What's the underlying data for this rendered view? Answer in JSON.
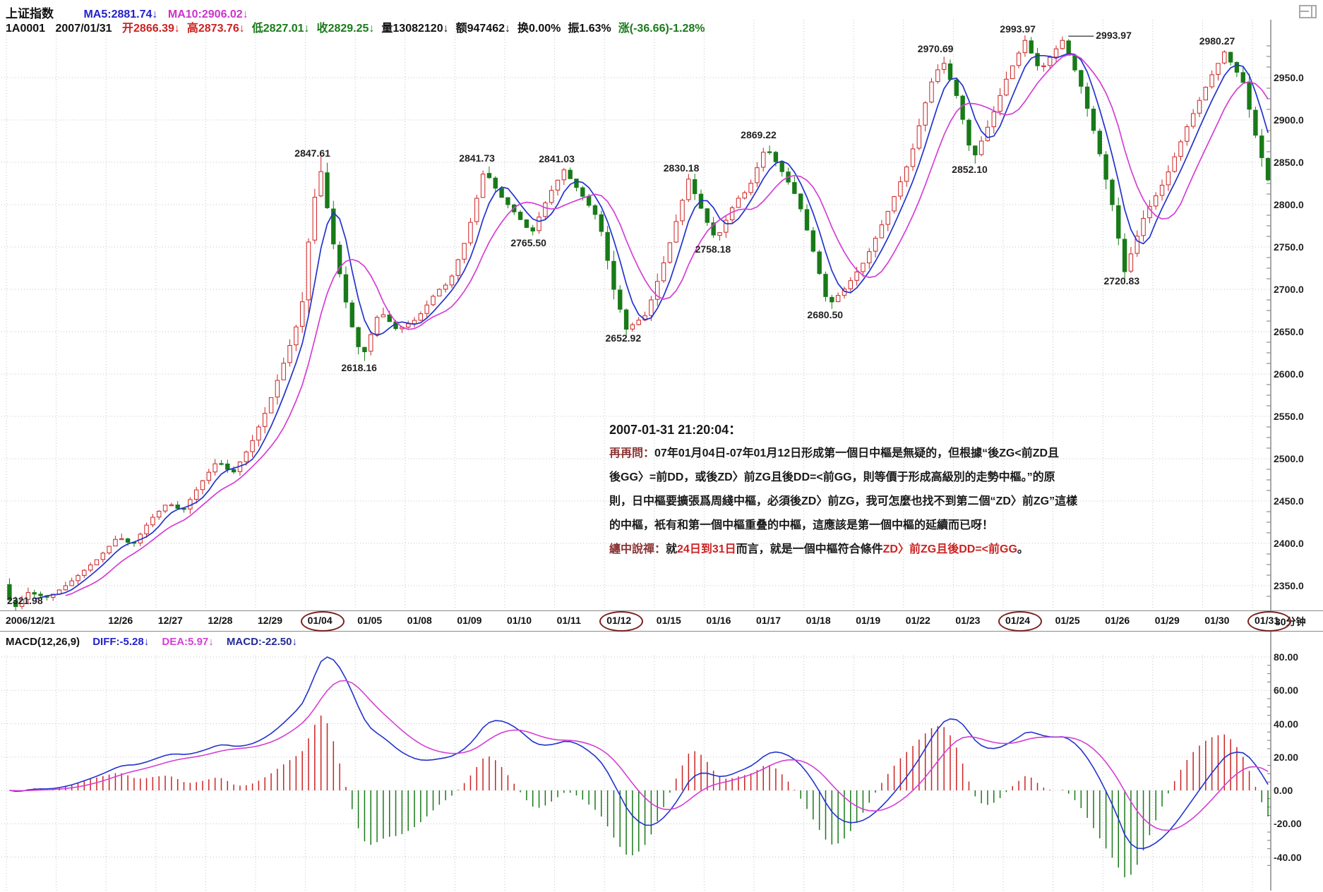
{
  "window": {
    "icon": "window-layout-icon"
  },
  "header": {
    "title": "上证指数",
    "ma5": {
      "text": "MA5:2881.74↓",
      "color": "#2222cc"
    },
    "ma10": {
      "text": "MA10:2906.02↓",
      "color": "#cc33cc"
    },
    "code": "1A0001",
    "date": "2007/01/31",
    "fields": [
      {
        "text": "开2866.39↓",
        "color": "#cc2222"
      },
      {
        "text": "高2873.76↓",
        "color": "#cc2222"
      },
      {
        "text": "低2827.01↓",
        "color": "#1b7a1b"
      },
      {
        "text": "收2829.25↓",
        "color": "#1b7a1b"
      },
      {
        "text": "量13082120↓",
        "color": "#111111"
      },
      {
        "text": "额947462↓",
        "color": "#111111"
      },
      {
        "text": "换0.00%",
        "color": "#111111"
      },
      {
        "text": "振1.63%",
        "color": "#111111"
      },
      {
        "text": "涨(-36.66)-1.28%",
        "color": "#1b7a1b"
      }
    ]
  },
  "macd_header": {
    "name": "MACD(12,26,9)",
    "diff": {
      "text": "DIFF:-5.28↓",
      "color": "#2222cc"
    },
    "dea": {
      "text": "DEA:5.97↓",
      "color": "#d43fd4"
    },
    "macd": {
      "text": "MACD:-22.50↓",
      "color": "#222a99"
    }
  },
  "timeframe": "30分钟",
  "annotation": {
    "timestamp": "2007-01-31 21:20:04：",
    "lines": [
      [
        {
          "t": "再再問：",
          "c": "#8b3333"
        },
        {
          "t": "07年01月04日-07年01月12日形成第一個日中樞是無疑的，但根據“後ZG<前ZD且",
          "c": "#1a1a1a"
        }
      ],
      [
        {
          "t": "後GG〉=前DD，或後ZD〉前ZG且後DD=<前GG，則等價于形成高級別的走勢中樞。”的原",
          "c": "#1a1a1a"
        }
      ],
      [
        {
          "t": "則，日中樞要擴張爲周綫中樞，必須後ZD〉前ZG，我可怎麼也找不到第二個“ZD〉前ZG”這樣",
          "c": "#1a1a1a"
        }
      ],
      [
        {
          "t": "的中樞，衹有和第一個中樞重叠的中樞，這應該是第一個中樞的延續而已呀！",
          "c": "#1a1a1a"
        }
      ],
      [
        {
          "t": "纏中說禪：",
          "c": "#8b3333"
        },
        {
          "t": "就",
          "c": "#1a1a1a"
        },
        {
          "t": "24日到31日",
          "c": "#cc2222"
        },
        {
          "t": "而言，就是一個中樞符合條件",
          "c": "#1a1a1a"
        },
        {
          "t": "ZD〉前ZG且後DD=<前GG",
          "c": "#cc2222"
        },
        {
          "t": "。",
          "c": "#1a1a1a"
        }
      ]
    ]
  },
  "chart_data": {
    "type": "candlestick",
    "instrument": "上证指数 1A0001",
    "period": "30分钟",
    "panels": [
      "price-with-ma5-ma10",
      "macd-12-26-9"
    ],
    "price_axis": {
      "ticks": [
        2950.0,
        2900.0,
        2850.0,
        2800.0,
        2750.0,
        2700.0,
        2650.0,
        2600.0,
        2550.0,
        2500.0,
        2450.0,
        2400.0,
        2350.0
      ],
      "grid": "dotted"
    },
    "macd_axis": {
      "ticks": [
        80.0,
        60.0,
        40.0,
        20.0,
        0.0,
        -20.0,
        -40.0
      ],
      "grid": "dotted"
    },
    "days": [
      {
        "label": "2006/12/21",
        "circled": false
      },
      {
        "label": "",
        "circled": false
      },
      {
        "label": "12/26",
        "circled": false
      },
      {
        "label": "12/27",
        "circled": false
      },
      {
        "label": "12/28",
        "circled": false
      },
      {
        "label": "12/29",
        "circled": false
      },
      {
        "label": "01/04",
        "circled": true
      },
      {
        "label": "01/05",
        "circled": false
      },
      {
        "label": "01/08",
        "circled": false
      },
      {
        "label": "01/09",
        "circled": false
      },
      {
        "label": "01/10",
        "circled": false
      },
      {
        "label": "01/11",
        "circled": false
      },
      {
        "label": "01/12",
        "circled": true
      },
      {
        "label": "01/15",
        "circled": false
      },
      {
        "label": "01/16",
        "circled": false
      },
      {
        "label": "01/17",
        "circled": false
      },
      {
        "label": "01/18",
        "circled": false
      },
      {
        "label": "01/19",
        "circled": false
      },
      {
        "label": "01/22",
        "circled": false
      },
      {
        "label": "01/23",
        "circled": false
      },
      {
        "label": "01/24",
        "circled": true
      },
      {
        "label": "01/25",
        "circled": false
      },
      {
        "label": "01/26",
        "circled": false
      },
      {
        "label": "01/29",
        "circled": false
      },
      {
        "label": "01/30",
        "circled": false
      },
      {
        "label": "01/31",
        "circled": true
      }
    ],
    "bars_per_day": 8,
    "last_day_bars": 3,
    "pivots": [
      {
        "t": 0.2,
        "price": 2321.98,
        "label": "2321.98",
        "side": "below"
      },
      {
        "t": 6.35,
        "price": 2847.61,
        "label": "2847.61",
        "side": "above"
      },
      {
        "t": 7.2,
        "price": 2618.16,
        "label": "2618.16",
        "side": "below"
      },
      {
        "t": 9.65,
        "price": 2841.73,
        "label": "2841.73",
        "side": "above"
      },
      {
        "t": 10.6,
        "price": 2765.5,
        "label": "2765.50",
        "side": "below"
      },
      {
        "t": 11.25,
        "price": 2841.03,
        "label": "2841.03",
        "side": "above"
      },
      {
        "t": 12.5,
        "price": 2652.92,
        "label": "2652.92",
        "side": "below"
      },
      {
        "t": 13.75,
        "price": 2830.18,
        "label": "2830.18",
        "side": "above"
      },
      {
        "t": 14.3,
        "price": 2758.18,
        "label": "2758.18",
        "side": "below"
      },
      {
        "t": 15.3,
        "price": 2869.22,
        "label": "2869.22",
        "side": "above"
      },
      {
        "t": 16.55,
        "price": 2680.5,
        "label": "2680.50",
        "side": "below"
      },
      {
        "t": 18.85,
        "price": 2970.69,
        "label": "2970.69",
        "side": "above"
      },
      {
        "t": 19.45,
        "price": 2852.1,
        "label": "2852.10",
        "side": "below"
      },
      {
        "t": 20.5,
        "price": 2993.97,
        "label": "2993.97",
        "side": "above"
      },
      {
        "t": 21.25,
        "price": 2993.97,
        "label": "2993.97",
        "side": "above",
        "leader": true
      },
      {
        "t": 22.5,
        "price": 2720.83,
        "label": "2720.83",
        "side": "below"
      },
      {
        "t": 24.5,
        "price": 2980.27,
        "label": "2980.27",
        "side": "above"
      }
    ],
    "price_path_anchors": [
      [
        0.0,
        2352
      ],
      [
        0.2,
        2321.98
      ],
      [
        0.5,
        2342
      ],
      [
        0.9,
        2336
      ],
      [
        1.3,
        2352
      ],
      [
        1.9,
        2382
      ],
      [
        2.3,
        2408
      ],
      [
        2.6,
        2398
      ],
      [
        2.95,
        2428
      ],
      [
        3.3,
        2448
      ],
      [
        3.6,
        2438
      ],
      [
        3.95,
        2470
      ],
      [
        4.3,
        2498
      ],
      [
        4.6,
        2482
      ],
      [
        4.95,
        2515
      ],
      [
        5.3,
        2560
      ],
      [
        5.7,
        2625
      ],
      [
        5.98,
        2674
      ],
      [
        6.15,
        2770
      ],
      [
        6.35,
        2847.61
      ],
      [
        6.65,
        2745
      ],
      [
        6.95,
        2665
      ],
      [
        7.2,
        2618.16
      ],
      [
        7.55,
        2675
      ],
      [
        7.9,
        2652
      ],
      [
        8.3,
        2665
      ],
      [
        8.7,
        2698
      ],
      [
        8.95,
        2708
      ],
      [
        9.3,
        2762
      ],
      [
        9.65,
        2841.73
      ],
      [
        9.95,
        2812
      ],
      [
        10.3,
        2788
      ],
      [
        10.6,
        2765.5
      ],
      [
        10.95,
        2812
      ],
      [
        11.25,
        2841.03
      ],
      [
        11.6,
        2812
      ],
      [
        11.95,
        2782
      ],
      [
        12.25,
        2700
      ],
      [
        12.5,
        2652.92
      ],
      [
        12.9,
        2670
      ],
      [
        13.3,
        2740
      ],
      [
        13.75,
        2830.18
      ],
      [
        14.1,
        2782
      ],
      [
        14.3,
        2758.18
      ],
      [
        14.7,
        2805
      ],
      [
        14.95,
        2818
      ],
      [
        15.3,
        2869.22
      ],
      [
        15.7,
        2832
      ],
      [
        15.95,
        2805
      ],
      [
        16.3,
        2735
      ],
      [
        16.55,
        2680.5
      ],
      [
        16.9,
        2702
      ],
      [
        17.3,
        2735
      ],
      [
        17.75,
        2792
      ],
      [
        18.2,
        2855
      ],
      [
        18.6,
        2942
      ],
      [
        18.85,
        2970.69
      ],
      [
        19.15,
        2925
      ],
      [
        19.45,
        2852.1
      ],
      [
        19.8,
        2898
      ],
      [
        20.15,
        2952
      ],
      [
        20.5,
        2993.97
      ],
      [
        20.8,
        2958
      ],
      [
        21.1,
        2982
      ],
      [
        21.25,
        2993.97
      ],
      [
        21.6,
        2945
      ],
      [
        21.95,
        2872
      ],
      [
        22.25,
        2800
      ],
      [
        22.5,
        2720.83
      ],
      [
        22.9,
        2788
      ],
      [
        23.3,
        2828
      ],
      [
        23.75,
        2892
      ],
      [
        24.2,
        2948
      ],
      [
        24.5,
        2980.27
      ],
      [
        24.9,
        2942
      ],
      [
        25.05,
        2898
      ],
      [
        25.2,
        2866
      ],
      [
        25.375,
        2829.25
      ]
    ],
    "macd_params": [
      12,
      26,
      9
    ],
    "macd_peak_scale": 80,
    "series_colors": {
      "up": "#cc2222",
      "down": "#187a18",
      "ma5": "#2233cc",
      "ma10": "#d43fd4",
      "diff": "#2233cc",
      "dea": "#d43fd4",
      "hist_pos": "#cc2222",
      "hist_neg": "#187a18",
      "grid": "#c4c4c4",
      "circle": "#7a2020"
    }
  }
}
